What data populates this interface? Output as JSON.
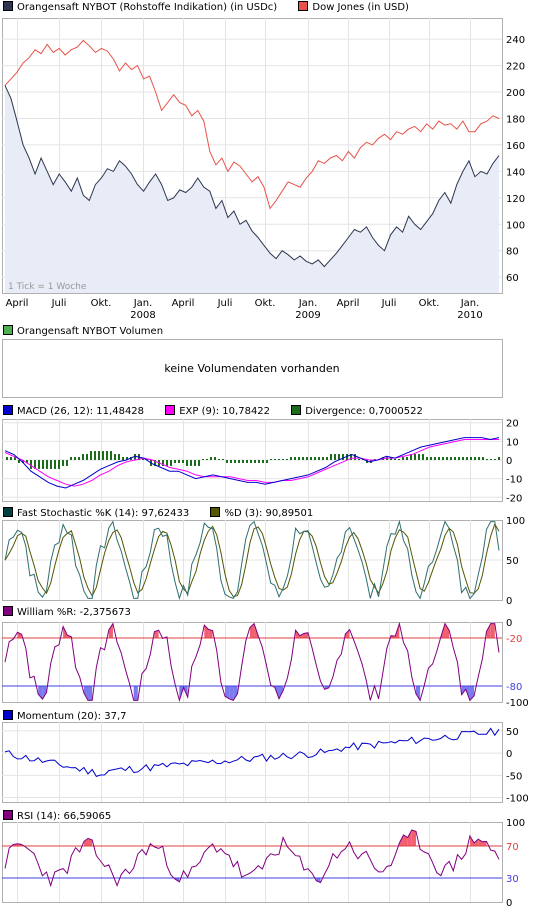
{
  "main_legend": [
    {
      "label": "Orangensaft NYBOT (Rohstoffe Indikation) (in USDc)",
      "color": "#2e3550"
    },
    {
      "label": "Dow Jones (in USD)",
      "color": "#e8524a"
    }
  ],
  "tick_note": "1 Tick = 1 Woche",
  "x_labels": [
    {
      "t": "April",
      "x": 17
    },
    {
      "t": "Juli",
      "x": 59
    },
    {
      "t": "Okt.",
      "x": 101
    },
    {
      "t": "Jan.",
      "x": 143
    },
    {
      "t": "April",
      "x": 183
    },
    {
      "t": "Juli",
      "x": 225
    },
    {
      "t": "Okt.",
      "x": 265
    },
    {
      "t": "Jan.",
      "x": 308
    },
    {
      "t": "April",
      "x": 348
    },
    {
      "t": "Juli",
      "x": 389
    },
    {
      "t": "Okt.",
      "x": 429
    },
    {
      "t": "Jan.",
      "x": 470
    }
  ],
  "year_labels": [
    {
      "t": "2008",
      "x": 143
    },
    {
      "t": "2009",
      "x": 308
    },
    {
      "t": "2010",
      "x": 470
    }
  ],
  "volume": {
    "legend": "Orangensaft NYBOT Volumen",
    "legend_color": "#4caf50",
    "message": "keine Volumendaten vorhanden"
  },
  "macd": {
    "legend": [
      {
        "label": "MACD (26, 12): 11,48428",
        "color": "#0000cc"
      },
      {
        "label": "EXP (9): 10,78422",
        "color": "#ff00ff"
      },
      {
        "label": "Divergence: 0,7000522",
        "color": "#1a6b1a"
      }
    ],
    "ticks": [
      "20",
      "10",
      "0",
      "-10",
      "-20"
    ]
  },
  "stoch": {
    "legend": [
      {
        "label": "Fast Stochastic %K (14): 97,62433",
        "color": "#004040"
      },
      {
        "label": "%D (3): 90,89501",
        "color": "#555500"
      }
    ],
    "ticks": [
      "100",
      "50",
      "0"
    ]
  },
  "william": {
    "legend": [
      {
        "label": "William %R: -2,375673",
        "color": "#800080"
      }
    ],
    "ticks": [
      "0",
      "-20",
      "-80",
      "-100"
    ]
  },
  "momentum": {
    "legend": [
      {
        "label": "Momentum (20): 37,7",
        "color": "#0000cc"
      }
    ],
    "ticks": [
      "50",
      "0",
      "-50",
      "-100"
    ]
  },
  "rsi": {
    "legend": [
      {
        "label": "RSI (14): 66,59065",
        "color": "#800080"
      }
    ],
    "ticks": [
      "100",
      "70",
      "30",
      "0"
    ]
  },
  "chart_data": {
    "type": "line",
    "panels": [
      {
        "name": "price",
        "y_axis_ticks": [
          60,
          80,
          100,
          120,
          140,
          160,
          180,
          200,
          220,
          240
        ],
        "series": [
          {
            "name": "Orangensaft NYBOT (Rohstoffe Indikation) (in USDc)",
            "color": "#2e3550",
            "values": [
              205,
              195,
              178,
              160,
              150,
              138,
              150,
              140,
              130,
              138,
              132,
              125,
              135,
              122,
              118,
              130,
              135,
              142,
              140,
              148,
              144,
              138,
              130,
              125,
              132,
              138,
              130,
              118,
              120,
              126,
              124,
              128,
              135,
              128,
              125,
              112,
              118,
              105,
              110,
              100,
              103,
              95,
              90,
              84,
              78,
              74,
              80,
              77,
              73,
              76,
              72,
              70,
              73,
              68,
              73,
              78,
              84,
              90,
              96,
              94,
              98,
              90,
              84,
              80,
              92,
              98,
              94,
              106,
              100,
              96,
              102,
              108,
              118,
              124,
              116,
              130,
              140,
              148,
              136,
              140,
              138,
              146,
              152
            ]
          },
          {
            "name": "Dow Jones (in USD)",
            "color": "#e8524a",
            "values": [
              205,
              210,
              215,
              222,
              226,
              232,
              229,
              236,
              230,
              233,
              228,
              232,
              234,
              239,
              235,
              230,
              233,
              231,
              225,
              216,
              222,
              217,
              220,
              210,
              212,
              200,
              186,
              192,
              198,
              192,
              190,
              182,
              186,
              178,
              155,
              145,
              150,
              140,
              147,
              144,
              138,
              132,
              136,
              128,
              112,
              118,
              125,
              132,
              130,
              128,
              135,
              140,
              148,
              146,
              150,
              152,
              148,
              155,
              150,
              158,
              162,
              160,
              165,
              168,
              164,
              170,
              168,
              172,
              174,
              170,
              176,
              172,
              178,
              175,
              176,
              172,
              178,
              170,
              170,
              176,
              178,
              182,
              180
            ]
          }
        ]
      },
      {
        "name": "MACD",
        "y_axis_ticks": [
          -20,
          -10,
          0,
          10,
          20
        ],
        "series": [
          {
            "name": "MACD (26, 12)",
            "color": "#0000cc",
            "values": [
              5,
              3,
              -1,
              -6,
              -9,
              -12,
              -14,
              -15,
              -13,
              -11,
              -8,
              -5,
              -3,
              -1,
              0,
              2,
              1,
              -2,
              -4,
              -6,
              -6,
              -8,
              -10,
              -9,
              -8,
              -9,
              -10,
              -11,
              -12,
              -12,
              -13,
              -12,
              -11,
              -10,
              -9,
              -8,
              -6,
              -4,
              -1,
              1,
              3,
              1,
              -1,
              0,
              2,
              1,
              3,
              5,
              7,
              8,
              9,
              10,
              11,
              12,
              12,
              12,
              11,
              12
            ]
          },
          {
            "name": "EXP (9)",
            "color": "#ff00ff",
            "values": [
              4,
              2,
              0,
              -3,
              -6,
              -9,
              -11,
              -13,
              -14,
              -13,
              -11,
              -8,
              -6,
              -3,
              -1,
              0,
              1,
              0,
              -2,
              -4,
              -5,
              -6,
              -8,
              -9,
              -9,
              -9,
              -9,
              -10,
              -11,
              -11,
              -12,
              -12,
              -11,
              -11,
              -10,
              -9,
              -7,
              -5,
              -3,
              -1,
              1,
              1,
              0,
              0,
              1,
              1,
              2,
              3,
              5,
              7,
              8,
              9,
              10,
              11,
              11,
              11,
              11,
              11
            ]
          }
        ],
        "bars": {
          "name": "Divergence",
          "color": "#1a6b1a"
        }
      },
      {
        "name": "Fast Stochastic",
        "y_axis_ticks": [
          0,
          50,
          100
        ],
        "series": [
          {
            "name": "%K (14)",
            "color": "#004040"
          },
          {
            "name": "%D (3)",
            "color": "#555500"
          }
        ]
      },
      {
        "name": "William %R",
        "y_axis_ticks": [
          -100,
          -80,
          -20,
          0
        ],
        "series": [
          {
            "name": "William %R",
            "color": "#800080"
          }
        ]
      },
      {
        "name": "Momentum (20)",
        "y_axis_ticks": [
          -100,
          -50,
          0,
          50
        ],
        "series": [
          {
            "name": "Momentum (20)",
            "color": "#0000cc"
          }
        ]
      },
      {
        "name": "RSI (14)",
        "y_axis_ticks": [
          0,
          30,
          70,
          100
        ],
        "series": [
          {
            "name": "RSI (14)",
            "color": "#800080"
          }
        ]
      }
    ]
  }
}
